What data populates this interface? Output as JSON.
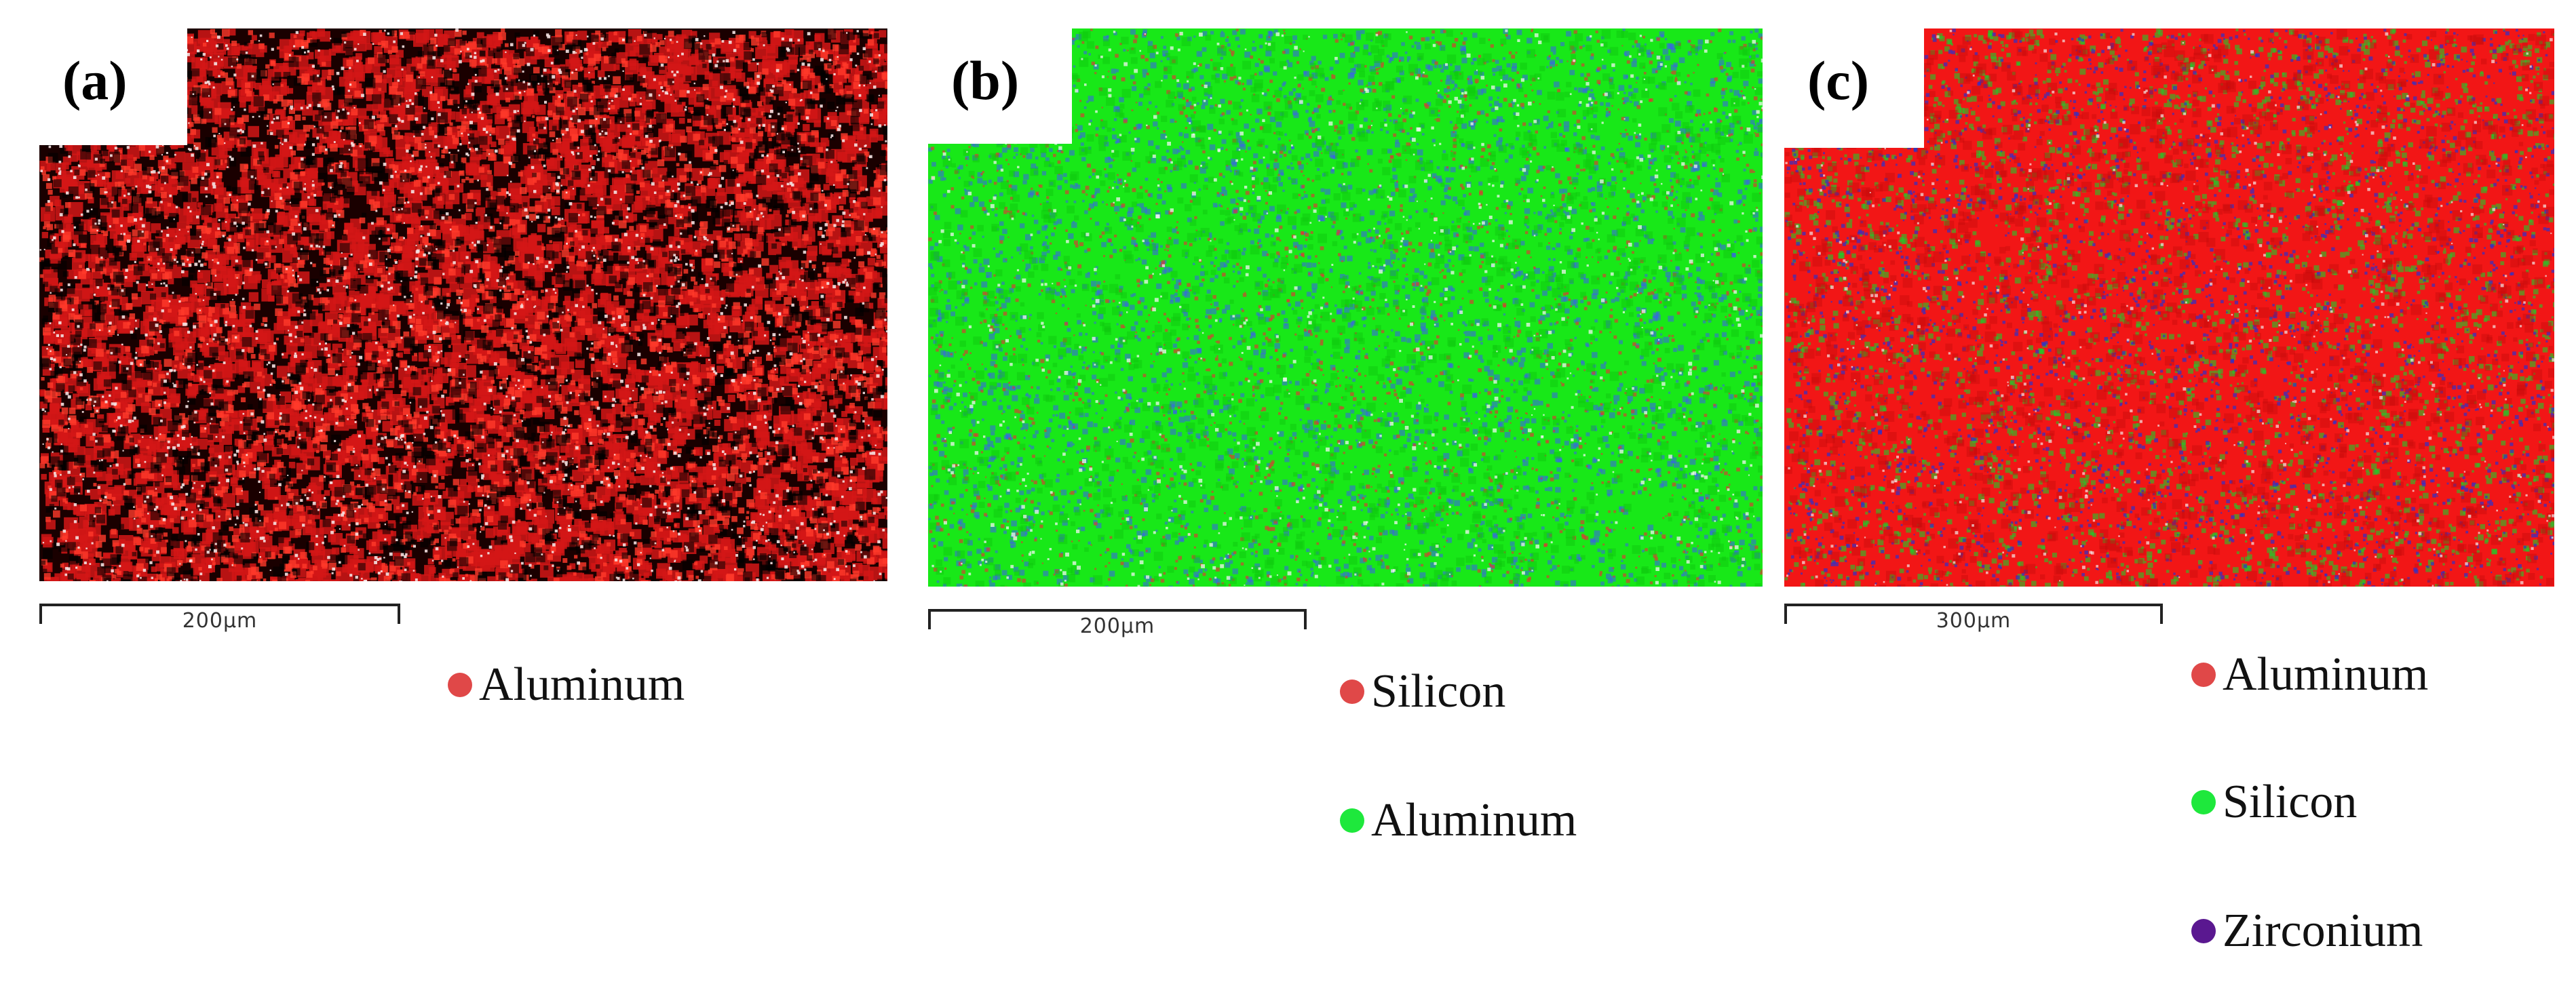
{
  "panels": [
    {
      "label": "(a)",
      "scale_text": "200µm",
      "map_colors": {
        "base": "#1a0000",
        "primary": "#d41616",
        "secondary": "#ff3a2a",
        "speck": "#f4e2e2"
      },
      "legend": [
        {
          "name": "Aluminum",
          "color": "#e04848"
        }
      ]
    },
    {
      "label": "(b)",
      "scale_text": "200µm",
      "map_colors": {
        "base": "#18e818",
        "primary": "#3a5cf0",
        "secondary": "#e03434",
        "speck": "#f2f6f2"
      },
      "legend": [
        {
          "name": "Silicon",
          "color": "#e04848"
        },
        {
          "name": "Aluminum",
          "color": "#1ee83c"
        }
      ]
    },
    {
      "label": "(c)",
      "scale_text": "300µm",
      "map_colors": {
        "base": "#f21616",
        "primary": "#1ecc2a",
        "secondary": "#3030c8",
        "speck": "#f4e8e8"
      },
      "legend": [
        {
          "name": "Aluminum",
          "color": "#e04848"
        },
        {
          "name": "Silicon",
          "color": "#1ee83c"
        },
        {
          "name": "Zirconium",
          "color": "#5a1890"
        }
      ]
    }
  ]
}
